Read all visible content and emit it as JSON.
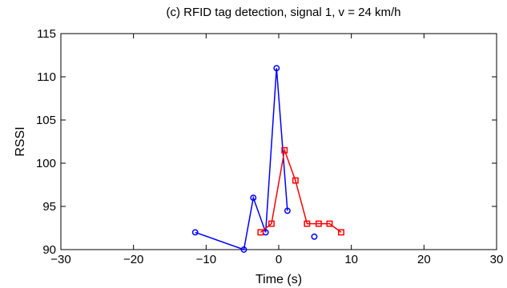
{
  "chart_data": {
    "type": "line",
    "title": "(c) RFID tag detection, signal 1, v = 24 km/h",
    "xlabel": "Time (s)",
    "ylabel": "RSSI",
    "xlim": [
      -30,
      30
    ],
    "ylim": [
      90,
      115
    ],
    "xticks": [
      -30,
      -20,
      -10,
      0,
      10,
      20,
      30
    ],
    "yticks": [
      90,
      95,
      100,
      105,
      110,
      115
    ],
    "xtick_labels": [
      "−30",
      "−20",
      "−10",
      "0",
      "10",
      "20",
      "30"
    ],
    "ytick_labels": [
      "90",
      "95",
      "100",
      "105",
      "110",
      "115"
    ],
    "grid": false,
    "series": [
      {
        "color": "#0000ff",
        "marker": "circle",
        "segments": [
          [
            {
              "x": -11.5,
              "y": 92
            },
            {
              "x": -4.8,
              "y": 90
            },
            {
              "x": -3.5,
              "y": 96
            },
            {
              "x": -1.8,
              "y": 92
            },
            {
              "x": -0.3,
              "y": 111
            },
            {
              "x": 1.2,
              "y": 94.5
            }
          ],
          [
            {
              "x": 4.9,
              "y": 91.5
            }
          ]
        ]
      },
      {
        "color": "#ff0000",
        "marker": "square",
        "segments": [
          [
            {
              "x": -2.5,
              "y": 92
            },
            {
              "x": -1.0,
              "y": 93
            },
            {
              "x": 0.8,
              "y": 101.5
            },
            {
              "x": 2.3,
              "y": 98
            },
            {
              "x": 3.9,
              "y": 93
            },
            {
              "x": 5.5,
              "y": 93
            },
            {
              "x": 7.0,
              "y": 93
            },
            {
              "x": 8.6,
              "y": 92
            }
          ]
        ]
      }
    ]
  }
}
